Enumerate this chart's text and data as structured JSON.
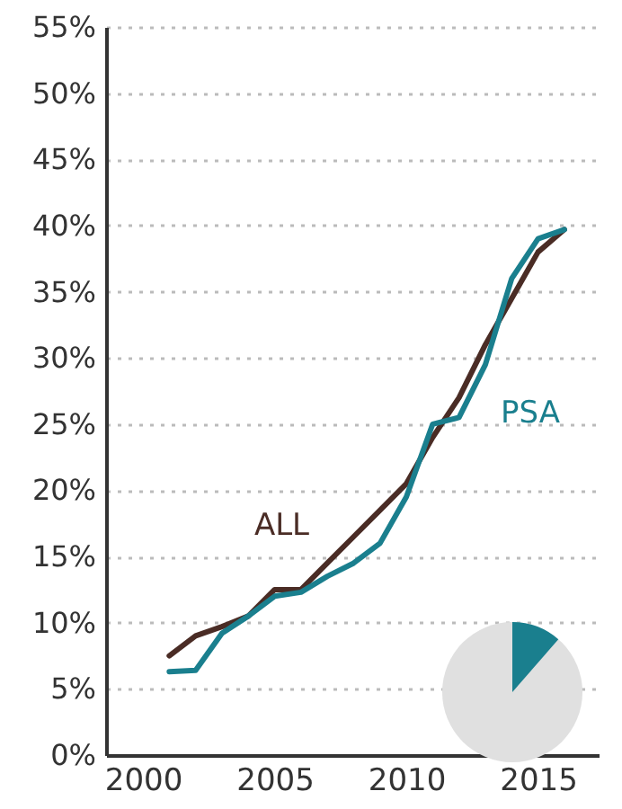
{
  "chart_data": {
    "type": "line",
    "x": [
      2001,
      2002,
      2003,
      2004,
      2005,
      2006,
      2007,
      2008,
      2009,
      2010,
      2011,
      2012,
      2013,
      2014,
      2015,
      2016
    ],
    "series": [
      {
        "name": "ALL",
        "color": "#4a2c25",
        "values": [
          7.5,
          9,
          9.7,
          10.5,
          12.5,
          12.5,
          14.5,
          16.5,
          18.5,
          20.5,
          24,
          27,
          31,
          34.5,
          38,
          39.7
        ]
      },
      {
        "name": "PSA",
        "color": "#1a7f8e",
        "values": [
          6.3,
          6.4,
          9.2,
          10.5,
          12,
          12.3,
          13.5,
          14.5,
          16,
          19.5,
          25,
          25.5,
          29.5,
          36,
          39,
          39.7
        ]
      }
    ],
    "xlim": [
      1998.6,
      2017.3
    ],
    "xticks": [
      2000,
      2005,
      2010,
      2015
    ],
    "ylim": [
      0,
      55
    ],
    "yticks": [
      {
        "value": 0,
        "label": "0%"
      },
      {
        "value": 5,
        "label": "5%"
      },
      {
        "value": 10,
        "label": "10%"
      },
      {
        "value": 15,
        "label": "15%"
      },
      {
        "value": 20,
        "label": "20%"
      },
      {
        "value": 25,
        "label": "25%"
      },
      {
        "value": 30,
        "label": "30%"
      },
      {
        "value": 35,
        "label": "35%"
      },
      {
        "value": 40,
        "label": "40%"
      },
      {
        "value": 45,
        "label": "45%"
      },
      {
        "value": 50,
        "label": "50%"
      },
      {
        "value": 55,
        "label": "55%"
      }
    ],
    "grid": "y",
    "legend": false,
    "marker": "none",
    "line_style": "solid"
  }
}
